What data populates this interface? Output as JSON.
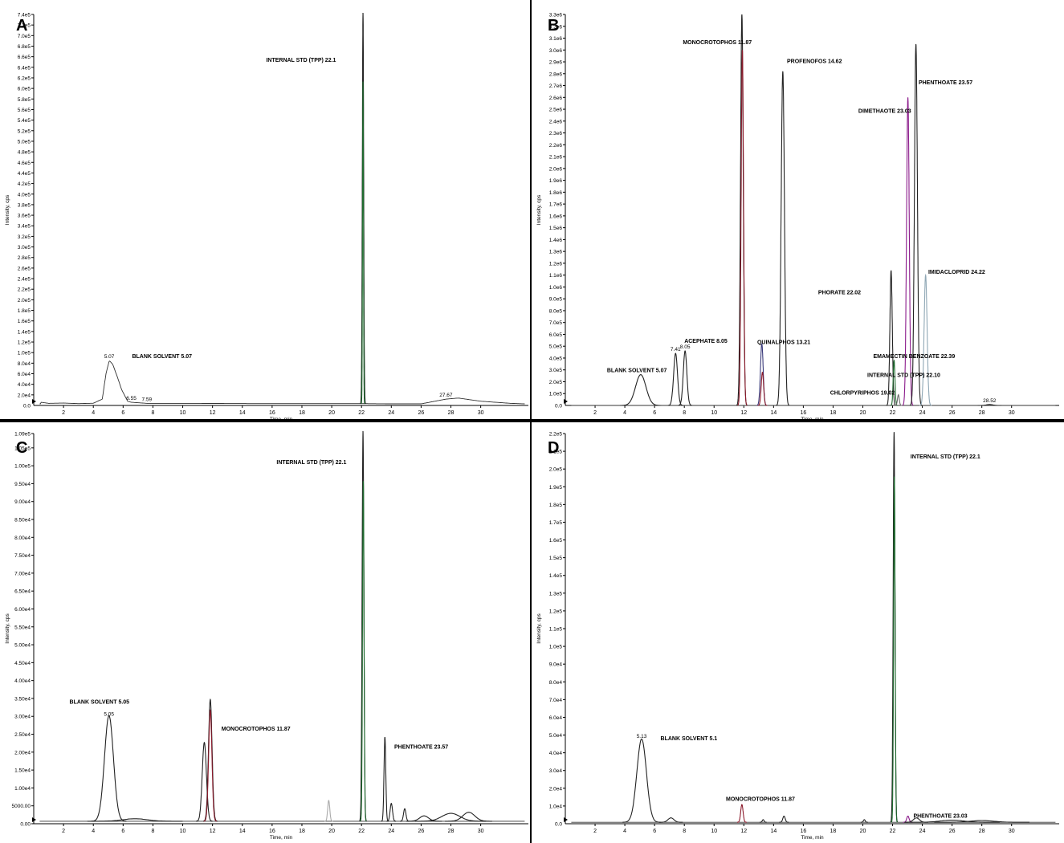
{
  "page": {
    "background": "#ffffff",
    "divider_color": "#000000"
  },
  "chart_data": [
    {
      "panel": "A",
      "type": "line",
      "xlabel": "Time, min",
      "ylabel": "Intensity, cps",
      "xlim": [
        0,
        33.2
      ],
      "ylim": [
        0,
        740000.0
      ],
      "x_ticks": [
        2,
        4,
        6,
        8,
        10,
        12,
        14,
        16,
        18,
        20,
        22,
        24,
        26,
        28,
        30
      ],
      "y_tick_labels": [
        "2.0e4",
        "4.0e4",
        "6.0e4",
        "8.0e4",
        "1.0e5",
        "1.2e5",
        "1.4e5",
        "1.6e5",
        "1.8e5",
        "2.0e5",
        "2.2e5",
        "2.4e5",
        "2.6e5",
        "2.8e5",
        "3.0e5",
        "3.2e5",
        "3.4e5",
        "3.6e5",
        "3.8e5",
        "4.0e5",
        "4.2e5",
        "4.4e5",
        "4.6e5",
        "4.8e5",
        "5.0e5",
        "5.2e5",
        "5.4e5",
        "5.6e5",
        "5.8e5",
        "6.0e5",
        "6.2e5",
        "6.4e5",
        "6.6e5",
        "6.8e5",
        "7.0e5",
        "7.2e5",
        "7.4e5"
      ],
      "baseline": 3000,
      "series": [
        {
          "color": "#222222",
          "points": [
            [
              0.5,
              6000
            ],
            [
              1,
              4000
            ],
            [
              2,
              4500
            ],
            [
              3,
              3500
            ],
            [
              4,
              4200
            ],
            [
              4.6,
              12000
            ],
            [
              4.85,
              60000
            ],
            [
              5.07,
              85000
            ],
            [
              5.3,
              78000
            ],
            [
              5.6,
              55000
            ],
            [
              5.9,
              30000
            ],
            [
              6.3,
              8000
            ],
            [
              6.55,
              6000
            ],
            [
              7.59,
              4000
            ],
            [
              10,
              4000
            ],
            [
              15,
              3500
            ],
            [
              20,
              3500
            ],
            [
              22.1,
              3500
            ],
            [
              24,
              3000
            ],
            [
              26,
              3000
            ],
            [
              27.67,
              12000
            ],
            [
              28.5,
              14000
            ],
            [
              29,
              12000
            ],
            [
              30,
              8000
            ],
            [
              31,
              6000
            ],
            [
              32,
              4000
            ],
            [
              33,
              3000
            ]
          ]
        }
      ],
      "peaks": [
        {
          "t": 22.1,
          "h": 740000,
          "w": 0.045,
          "color": "#222222"
        },
        {
          "t": 22.1,
          "h": 610000,
          "w": 0.03,
          "color": "#1e6b2e"
        }
      ],
      "annotations": [
        {
          "x": 5.07,
          "y": 85000,
          "text": "5.07",
          "kind": "rt"
        },
        {
          "x": 6.55,
          "y": 6000,
          "text": "6.55",
          "kind": "rt"
        },
        {
          "x": 7.59,
          "y": 4000,
          "text": "7.59",
          "kind": "rt"
        },
        {
          "x": 27.67,
          "y": 12000,
          "text": "27.67",
          "kind": "rt"
        },
        {
          "x": 6.6,
          "y": 90000,
          "text": "BLANK SOLVENT 5.07",
          "kind": "label"
        },
        {
          "x": 15.6,
          "y": 650000,
          "text": "INTERNAL STD (TPP) 22.1",
          "kind": "label"
        }
      ]
    },
    {
      "panel": "B",
      "type": "line",
      "xlabel": "Time, min",
      "ylabel": "Intensity, cps",
      "xlim": [
        0,
        33.2
      ],
      "ylim": [
        0,
        3300000.0
      ],
      "x_ticks": [
        2,
        4,
        6,
        8,
        10,
        12,
        14,
        16,
        18,
        20,
        22,
        24,
        26,
        28,
        30
      ],
      "y_tick_labels": [
        "1.0e5",
        "2.0e5",
        "3.0e5",
        "4.0e5",
        "5.0e5",
        "6.0e5",
        "7.0e5",
        "8.0e5",
        "9.0e5",
        "1.0e6",
        "1.1e6",
        "1.2e6",
        "1.3e6",
        "1.4e6",
        "1.5e6",
        "1.6e6",
        "1.7e6",
        "1.8e6",
        "1.9e6",
        "2.0e6",
        "2.1e6",
        "2.2e6",
        "2.3e6",
        "2.4e6",
        "2.5e6",
        "2.6e6",
        "2.7e6",
        "2.8e6",
        "2.9e6",
        "3.0e6",
        "3.1e6",
        "3.2e6",
        "3.3e6"
      ],
      "baseline": 0,
      "series": [],
      "peaks": [
        {
          "t": 5.07,
          "h": 260000,
          "w": 0.35,
          "color": "#222222"
        },
        {
          "t": 7.41,
          "h": 440000,
          "w": 0.13,
          "color": "#222222"
        },
        {
          "t": 8.05,
          "h": 460000,
          "w": 0.12,
          "color": "#222222"
        },
        {
          "t": 11.87,
          "h": 3300000,
          "w": 0.09,
          "color": "#222222"
        },
        {
          "t": 11.9,
          "h": 3000000,
          "w": 0.08,
          "color": "#8b1a2b"
        },
        {
          "t": 13.21,
          "h": 520000,
          "w": 0.09,
          "color": "#3a3a7a"
        },
        {
          "t": 13.25,
          "h": 280000,
          "w": 0.08,
          "color": "#8b1a2b"
        },
        {
          "t": 14.62,
          "h": 2820000,
          "w": 0.11,
          "color": "#222222"
        },
        {
          "t": 21.9,
          "h": 1140000,
          "w": 0.08,
          "color": "#222222"
        },
        {
          "t": 22.1,
          "h": 380000,
          "w": 0.06,
          "color": "#1e6b2e"
        },
        {
          "t": 22.39,
          "h": 90000,
          "w": 0.06,
          "color": "#6a6a6a"
        },
        {
          "t": 23.03,
          "h": 2600000,
          "w": 0.09,
          "color": "#8b1a8b"
        },
        {
          "t": 23.57,
          "h": 3050000,
          "w": 0.1,
          "color": "#222222"
        },
        {
          "t": 24.22,
          "h": 1100000,
          "w": 0.1,
          "color": "#8fa7b5"
        },
        {
          "t": 28.52,
          "h": 8000,
          "w": 0.2,
          "color": "#222222"
        }
      ],
      "annotations": [
        {
          "x": 7.41,
          "y": 440000,
          "text": "7.41",
          "kind": "rt"
        },
        {
          "x": 8.05,
          "y": 460000,
          "text": "8.05",
          "kind": "rt"
        },
        {
          "x": 28.52,
          "y": 8000,
          "text": "28.52",
          "kind": "rt"
        },
        {
          "x": 2.8,
          "y": 280000,
          "text": "BLANK SOLVENT 5.07",
          "kind": "label"
        },
        {
          "x": 8.0,
          "y": 530000,
          "text": "ACEPHATE 8.05",
          "kind": "label"
        },
        {
          "x": 7.9,
          "y": 3050000,
          "text": "MONOCROTOPHOS 11.87",
          "kind": "label"
        },
        {
          "x": 14.9,
          "y": 2890000,
          "text": "PROFENOFOS 14.62",
          "kind": "label"
        },
        {
          "x": 12.9,
          "y": 520000,
          "text": "QUINALPHOS 13.21",
          "kind": "label"
        },
        {
          "x": 19.7,
          "y": 2470000,
          "text": "DIMETHAOTE 23.03",
          "kind": "label"
        },
        {
          "x": 23.75,
          "y": 2710000,
          "text": "PHENTHOATE 23.57",
          "kind": "label"
        },
        {
          "x": 24.4,
          "y": 1110000,
          "text": "IMIDACLOPRID 24.22",
          "kind": "label"
        },
        {
          "x": 17.0,
          "y": 940000,
          "text": "PHORATE 22.02",
          "kind": "label"
        },
        {
          "x": 20.7,
          "y": 400000,
          "text": "EMAMECTIN BENZOATE 22.39",
          "kind": "label"
        },
        {
          "x": 20.3,
          "y": 240000,
          "text": "INTERNAL STD (TPP) 22.10",
          "kind": "label"
        },
        {
          "x": 17.8,
          "y": 90000,
          "text": "CHLORPYRIPHOS 19.02",
          "kind": "label"
        }
      ]
    },
    {
      "panel": "C",
      "type": "line",
      "xlabel": "Time, min",
      "ylabel": "Intensity, cps",
      "xlim": [
        0,
        33.2
      ],
      "ylim": [
        0,
        109000.0
      ],
      "x_ticks": [
        2,
        4,
        6,
        8,
        10,
        12,
        14,
        16,
        18,
        20,
        22,
        24,
        26,
        28,
        30
      ],
      "y_tick_labels": [
        "0.00",
        "5000.00",
        "1.00e4",
        "1.50e4",
        "2.00e4",
        "2.50e4",
        "3.00e4",
        "3.50e4",
        "4.00e4",
        "4.50e4",
        "5.00e4",
        "5.50e4",
        "6.00e4",
        "6.50e4",
        "7.00e4",
        "7.50e4",
        "8.00e4",
        "8.50e4",
        "9.00e4",
        "9.50e4",
        "1.00e5",
        "1.05e5",
        "1.09e5"
      ],
      "y_tick_values": [
        0,
        5000,
        10000,
        15000,
        20000,
        25000,
        30000,
        35000,
        40000,
        45000,
        50000,
        55000,
        60000,
        65000,
        70000,
        75000,
        80000,
        85000,
        90000,
        95000,
        100000,
        105000,
        109000
      ],
      "baseline": 700,
      "series": [],
      "peaks": [
        {
          "t": 5.05,
          "h": 29500,
          "w": 0.3,
          "color": "#222222"
        },
        {
          "t": 6.8,
          "h": 700,
          "w": 0.8,
          "color": "#222222"
        },
        {
          "t": 11.45,
          "h": 22000,
          "w": 0.14,
          "color": "#222222"
        },
        {
          "t": 11.85,
          "h": 34000,
          "w": 0.12,
          "color": "#222222"
        },
        {
          "t": 11.85,
          "h": 31000,
          "w": 0.11,
          "color": "#8b1a2b"
        },
        {
          "t": 19.8,
          "h": 5800,
          "w": 0.07,
          "color": "#aaaaaa"
        },
        {
          "t": 22.1,
          "h": 109000,
          "w": 0.06,
          "color": "#222222"
        },
        {
          "t": 22.12,
          "h": 95000,
          "w": 0.05,
          "color": "#1e6b2e"
        },
        {
          "t": 23.57,
          "h": 23500,
          "w": 0.06,
          "color": "#222222"
        },
        {
          "t": 24.0,
          "h": 5000,
          "w": 0.08,
          "color": "#222222"
        },
        {
          "t": 24.9,
          "h": 3500,
          "w": 0.08,
          "color": "#222222"
        },
        {
          "t": 26.2,
          "h": 1500,
          "w": 0.3,
          "color": "#222222"
        },
        {
          "t": 28.0,
          "h": 2200,
          "w": 0.6,
          "color": "#222222"
        },
        {
          "t": 29.2,
          "h": 2500,
          "w": 0.4,
          "color": "#222222"
        }
      ],
      "annotations": [
        {
          "x": 5.05,
          "y": 29500,
          "text": "5.05",
          "kind": "rt"
        },
        {
          "x": 2.4,
          "y": 33500,
          "text": "BLANK SOLVENT 5.05",
          "kind": "label"
        },
        {
          "x": 12.6,
          "y": 26000,
          "text": "MONOCROTOPHOS 11.87",
          "kind": "label"
        },
        {
          "x": 16.3,
          "y": 100500,
          "text": "INTERNAL STD (TPP) 22.1",
          "kind": "label"
        },
        {
          "x": 24.2,
          "y": 21000,
          "text": "PHENTHOATE 23.57",
          "kind": "label"
        }
      ]
    },
    {
      "panel": "D",
      "type": "line",
      "xlabel": "Time, min",
      "ylabel": "Intensity, cps",
      "xlim": [
        0,
        33.2
      ],
      "ylim": [
        0,
        220000.0
      ],
      "x_ticks": [
        2,
        4,
        6,
        8,
        10,
        12,
        14,
        16,
        18,
        20,
        22,
        24,
        26,
        28,
        30
      ],
      "y_tick_labels": [
        "1.0e4",
        "2.0e4",
        "3.0e4",
        "4.0e4",
        "5.0e4",
        "6.0e4",
        "7.0e4",
        "8.0e4",
        "9.0e4",
        "1.0e5",
        "1.1e5",
        "1.2e5",
        "1.3e5",
        "1.4e5",
        "1.5e5",
        "1.6e5",
        "1.7e5",
        "1.8e5",
        "1.9e5",
        "2.0e5",
        "2.1e5",
        "2.2e5"
      ],
      "baseline": 800,
      "series": [],
      "peaks": [
        {
          "t": 5.13,
          "h": 47000,
          "w": 0.32,
          "color": "#222222"
        },
        {
          "t": 7.1,
          "h": 2500,
          "w": 0.2,
          "color": "#222222"
        },
        {
          "t": 11.87,
          "h": 10000,
          "w": 0.08,
          "color": "#8b1a2b"
        },
        {
          "t": 13.3,
          "h": 1500,
          "w": 0.06,
          "color": "#222222"
        },
        {
          "t": 14.7,
          "h": 3500,
          "w": 0.08,
          "color": "#222222"
        },
        {
          "t": 20.1,
          "h": 1500,
          "w": 0.06,
          "color": "#222222"
        },
        {
          "t": 22.1,
          "h": 220000,
          "w": 0.06,
          "color": "#222222"
        },
        {
          "t": 22.12,
          "h": 195000,
          "w": 0.05,
          "color": "#1e6b2e"
        },
        {
          "t": 23.03,
          "h": 3500,
          "w": 0.08,
          "color": "#8b1a8b"
        },
        {
          "t": 23.6,
          "h": 2500,
          "w": 0.2,
          "color": "#222222"
        },
        {
          "t": 26.0,
          "h": 1200,
          "w": 0.8,
          "color": "#222222"
        },
        {
          "t": 28.0,
          "h": 1000,
          "w": 0.8,
          "color": "#222222"
        }
      ],
      "annotations": [
        {
          "x": 5.13,
          "y": 47000,
          "text": "5.13",
          "kind": "rt"
        },
        {
          "x": 6.4,
          "y": 47000,
          "text": "BLANK SOLVENT 5.1",
          "kind": "label"
        },
        {
          "x": 10.8,
          "y": 13000,
          "text": "MONOCROTOPHOS 11.87",
          "kind": "label"
        },
        {
          "x": 23.2,
          "y": 206000,
          "text": "INTERNAL STD (TPP) 22.1",
          "kind": "label"
        },
        {
          "x": 23.4,
          "y": 3500,
          "text": "PHENTHOATE 23.03",
          "kind": "label"
        }
      ]
    }
  ]
}
